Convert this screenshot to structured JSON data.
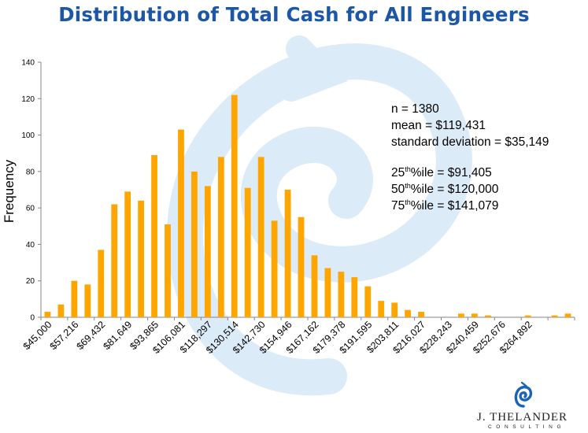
{
  "title": "Distribution of Total Cash for All Engineers",
  "stats": {
    "n": "n = 1380",
    "mean": "mean = $119,431",
    "sd": "standard deviation = $35,149",
    "p25_prefix": "25",
    "p25_sup": "th",
    "p25_rest": "%ile = $91,405",
    "p50_prefix": "50",
    "p50_sup": "th",
    "p50_rest": "%ile = $120,000",
    "p75_prefix": "75",
    "p75_sup": "th",
    "p75_rest": "%ile =  $141,079"
  },
  "logo": {
    "name": "J. THELANDER",
    "sub": "CONSULTING",
    "mark": "spiral-logo-icon"
  },
  "colors": {
    "bar": "#ffa500",
    "title": "#1b57a6",
    "watermark": "#dcebf8",
    "logo": "#1b63b5"
  },
  "chart_data": {
    "type": "bar",
    "title": "Distribution of Total Cash for All Engineers",
    "xlabel": "",
    "ylabel": "Frequency",
    "ylim": [
      0,
      140
    ],
    "yticks": [
      0,
      20,
      40,
      60,
      80,
      100,
      120,
      140
    ],
    "grid": false,
    "legend": "none",
    "xtick_labels": [
      "$45,000",
      "$57,216",
      "$69,432",
      "$81,649",
      "$93,865",
      "$106,081",
      "$118,297",
      "$130,514",
      "$142,730",
      "$154,946",
      "$167,162",
      "$179,378",
      "$191,595",
      "$203,811",
      "$216,027",
      "$228,243",
      "$240,459",
      "$252,676",
      "$264,892"
    ],
    "values": [
      3,
      7,
      20,
      18,
      37,
      62,
      69,
      64,
      89,
      51,
      103,
      80,
      72,
      88,
      122,
      71,
      88,
      53,
      70,
      55,
      34,
      27,
      25,
      22,
      17,
      9,
      8,
      4,
      3,
      0,
      0,
      2,
      2,
      1,
      0,
      0,
      1,
      0,
      1,
      2
    ]
  }
}
